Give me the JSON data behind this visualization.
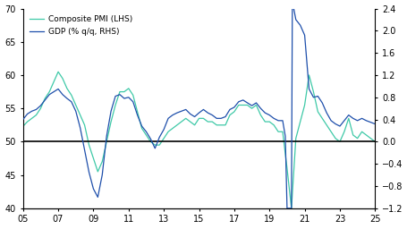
{
  "pmi_color": "#3EC9A7",
  "gdp_color": "#1E4FAB",
  "hline_color": "#000000",
  "background_color": "#ffffff",
  "lhs_ylim": [
    40,
    70
  ],
  "rhs_ylim": [
    -1.2,
    2.4
  ],
  "lhs_yticks": [
    40,
    45,
    50,
    55,
    60,
    65,
    70
  ],
  "rhs_yticks": [
    -1.2,
    -0.8,
    -0.4,
    0.0,
    0.4,
    0.8,
    1.2,
    1.6,
    2.0,
    2.4
  ],
  "xticks": [
    2005,
    2007,
    2009,
    2011,
    2013,
    2015,
    2017,
    2019,
    2021,
    2023,
    2025
  ],
  "xticklabels": [
    "05",
    "07",
    "09",
    "11",
    "13",
    "15",
    "17",
    "19",
    "21",
    "23",
    "25"
  ],
  "pmi_legend": "Composite PMI (LHS)",
  "gdp_legend": "GDP (% q/q, RHS)",
  "pmi_data": [
    [
      2005.0,
      52.3
    ],
    [
      2005.25,
      53.0
    ],
    [
      2005.5,
      53.5
    ],
    [
      2005.75,
      54.0
    ],
    [
      2006.0,
      55.0
    ],
    [
      2006.25,
      56.5
    ],
    [
      2006.5,
      57.5
    ],
    [
      2006.75,
      59.0
    ],
    [
      2007.0,
      60.5
    ],
    [
      2007.25,
      59.5
    ],
    [
      2007.5,
      58.0
    ],
    [
      2007.75,
      57.0
    ],
    [
      2008.0,
      55.5
    ],
    [
      2008.25,
      54.0
    ],
    [
      2008.5,
      52.5
    ],
    [
      2008.75,
      49.5
    ],
    [
      2009.0,
      47.5
    ],
    [
      2009.25,
      45.5
    ],
    [
      2009.5,
      47.0
    ],
    [
      2009.75,
      50.0
    ],
    [
      2010.0,
      53.0
    ],
    [
      2010.25,
      55.5
    ],
    [
      2010.5,
      57.5
    ],
    [
      2010.75,
      57.5
    ],
    [
      2011.0,
      58.0
    ],
    [
      2011.25,
      57.0
    ],
    [
      2011.5,
      54.5
    ],
    [
      2011.75,
      52.0
    ],
    [
      2012.0,
      51.0
    ],
    [
      2012.25,
      50.0
    ],
    [
      2012.5,
      49.5
    ],
    [
      2012.75,
      49.5
    ],
    [
      2013.0,
      50.5
    ],
    [
      2013.25,
      51.5
    ],
    [
      2013.5,
      52.0
    ],
    [
      2013.75,
      52.5
    ],
    [
      2014.0,
      53.0
    ],
    [
      2014.25,
      53.5
    ],
    [
      2014.5,
      53.0
    ],
    [
      2014.75,
      52.5
    ],
    [
      2015.0,
      53.5
    ],
    [
      2015.25,
      53.5
    ],
    [
      2015.5,
      53.0
    ],
    [
      2015.75,
      53.0
    ],
    [
      2016.0,
      52.5
    ],
    [
      2016.25,
      52.5
    ],
    [
      2016.5,
      52.5
    ],
    [
      2016.75,
      54.0
    ],
    [
      2017.0,
      54.5
    ],
    [
      2017.25,
      55.5
    ],
    [
      2017.5,
      55.5
    ],
    [
      2017.75,
      55.5
    ],
    [
      2018.0,
      55.0
    ],
    [
      2018.25,
      55.5
    ],
    [
      2018.5,
      54.0
    ],
    [
      2018.75,
      53.0
    ],
    [
      2019.0,
      53.0
    ],
    [
      2019.25,
      52.5
    ],
    [
      2019.5,
      51.5
    ],
    [
      2019.75,
      51.5
    ],
    [
      2020.0,
      46.0
    ],
    [
      2020.25,
      40.0
    ],
    [
      2020.5,
      50.5
    ],
    [
      2020.75,
      53.0
    ],
    [
      2021.0,
      55.5
    ],
    [
      2021.25,
      60.0
    ],
    [
      2021.5,
      57.5
    ],
    [
      2021.75,
      54.5
    ],
    [
      2022.0,
      53.5
    ],
    [
      2022.25,
      52.5
    ],
    [
      2022.5,
      51.5
    ],
    [
      2022.75,
      50.5
    ],
    [
      2023.0,
      50.0
    ],
    [
      2023.25,
      51.5
    ],
    [
      2023.5,
      53.5
    ],
    [
      2023.75,
      51.0
    ],
    [
      2024.0,
      50.5
    ],
    [
      2024.25,
      51.5
    ],
    [
      2024.5,
      51.0
    ],
    [
      2024.75,
      50.5
    ],
    [
      2025.0,
      50.0
    ]
  ],
  "gdp_data": [
    [
      2005.0,
      0.4
    ],
    [
      2005.25,
      0.5
    ],
    [
      2005.5,
      0.55
    ],
    [
      2005.75,
      0.58
    ],
    [
      2006.0,
      0.65
    ],
    [
      2006.25,
      0.75
    ],
    [
      2006.5,
      0.85
    ],
    [
      2006.75,
      0.9
    ],
    [
      2007.0,
      0.95
    ],
    [
      2007.25,
      0.85
    ],
    [
      2007.5,
      0.78
    ],
    [
      2007.75,
      0.72
    ],
    [
      2008.0,
      0.55
    ],
    [
      2008.25,
      0.25
    ],
    [
      2008.5,
      -0.15
    ],
    [
      2008.75,
      -0.55
    ],
    [
      2009.0,
      -0.85
    ],
    [
      2009.25,
      -1.0
    ],
    [
      2009.5,
      -0.6
    ],
    [
      2009.75,
      0.1
    ],
    [
      2010.0,
      0.55
    ],
    [
      2010.25,
      0.82
    ],
    [
      2010.5,
      0.85
    ],
    [
      2010.75,
      0.78
    ],
    [
      2011.0,
      0.8
    ],
    [
      2011.25,
      0.72
    ],
    [
      2011.5,
      0.48
    ],
    [
      2011.75,
      0.28
    ],
    [
      2012.0,
      0.18
    ],
    [
      2012.25,
      0.05
    ],
    [
      2012.5,
      -0.12
    ],
    [
      2012.75,
      0.08
    ],
    [
      2013.0,
      0.22
    ],
    [
      2013.25,
      0.42
    ],
    [
      2013.5,
      0.48
    ],
    [
      2013.75,
      0.52
    ],
    [
      2014.0,
      0.55
    ],
    [
      2014.25,
      0.58
    ],
    [
      2014.5,
      0.5
    ],
    [
      2014.75,
      0.45
    ],
    [
      2015.0,
      0.52
    ],
    [
      2015.25,
      0.58
    ],
    [
      2015.5,
      0.52
    ],
    [
      2015.75,
      0.48
    ],
    [
      2016.0,
      0.42
    ],
    [
      2016.25,
      0.42
    ],
    [
      2016.5,
      0.45
    ],
    [
      2016.75,
      0.58
    ],
    [
      2017.0,
      0.62
    ],
    [
      2017.25,
      0.72
    ],
    [
      2017.5,
      0.75
    ],
    [
      2017.75,
      0.7
    ],
    [
      2018.0,
      0.65
    ],
    [
      2018.25,
      0.7
    ],
    [
      2018.5,
      0.6
    ],
    [
      2018.75,
      0.52
    ],
    [
      2019.0,
      0.48
    ],
    [
      2019.25,
      0.42
    ],
    [
      2019.5,
      0.38
    ],
    [
      2019.75,
      0.38
    ],
    [
      2019.9,
      0.1
    ],
    [
      2020.0,
      -1.2
    ],
    [
      2020.1,
      -1.2
    ],
    [
      2020.25,
      -1.2
    ],
    [
      2020.3,
      2.45
    ],
    [
      2020.35,
      2.45
    ],
    [
      2020.5,
      2.2
    ],
    [
      2020.75,
      2.1
    ],
    [
      2021.0,
      1.92
    ],
    [
      2021.25,
      0.95
    ],
    [
      2021.5,
      0.8
    ],
    [
      2021.75,
      0.82
    ],
    [
      2022.0,
      0.7
    ],
    [
      2022.25,
      0.52
    ],
    [
      2022.5,
      0.38
    ],
    [
      2022.75,
      0.32
    ],
    [
      2023.0,
      0.28
    ],
    [
      2023.25,
      0.38
    ],
    [
      2023.5,
      0.48
    ],
    [
      2023.75,
      0.42
    ],
    [
      2024.0,
      0.38
    ],
    [
      2024.25,
      0.42
    ],
    [
      2024.5,
      0.38
    ],
    [
      2024.75,
      0.35
    ],
    [
      2025.0,
      0.32
    ]
  ]
}
